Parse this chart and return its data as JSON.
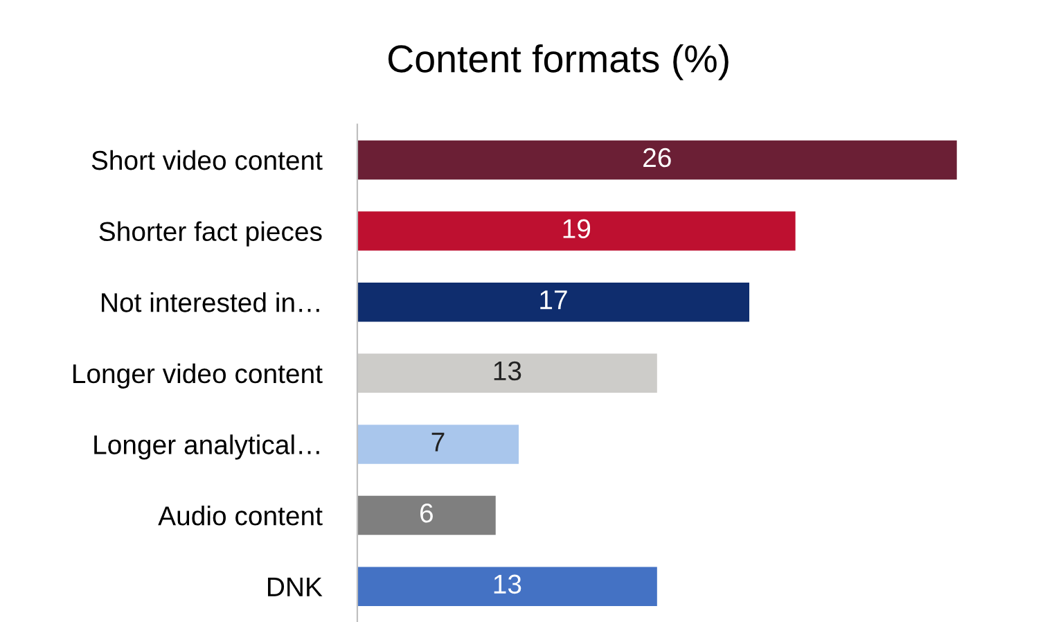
{
  "chart_data": {
    "type": "bar",
    "orientation": "horizontal",
    "title": "Content formats (%)",
    "categories": [
      "Short video content",
      "Shorter fact pieces",
      "Not interested in…",
      "Longer video content",
      "Longer analytical…",
      "Audio content",
      "DNK"
    ],
    "values": [
      26,
      19,
      17,
      13,
      7,
      6,
      13
    ],
    "colors": [
      "#6b1f35",
      "#be1030",
      "#0f2d6e",
      "#cdccc9",
      "#a9c6ec",
      "#7f7f7f",
      "#4472c4"
    ],
    "data_labels": true,
    "grid": false,
    "legend": false
  }
}
